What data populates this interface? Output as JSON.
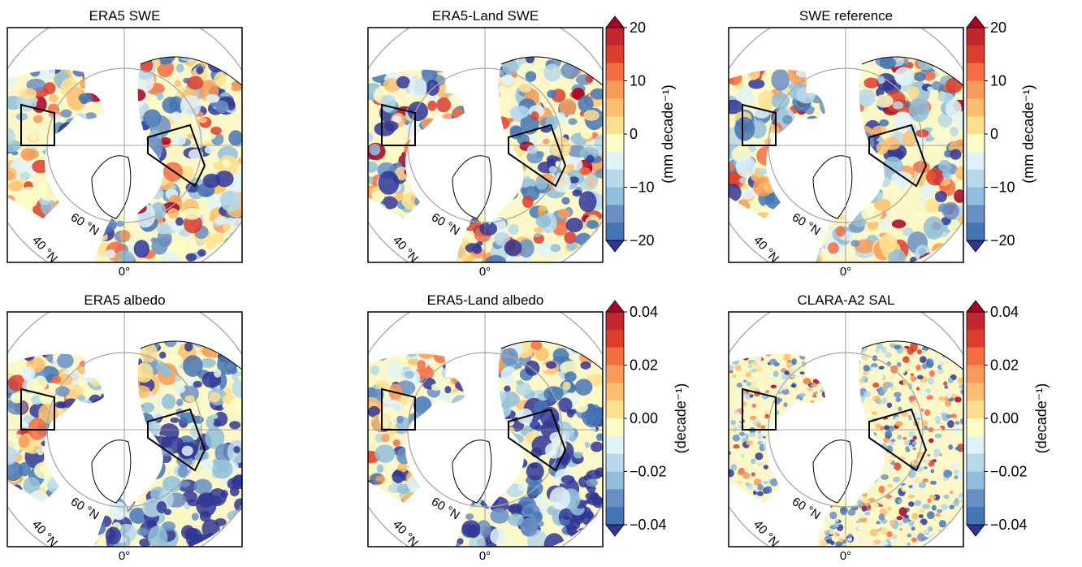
{
  "figure": {
    "panels": [
      {
        "title": "ERA5 SWE",
        "colorbar": "swe"
      },
      {
        "title": "ERA5-Land SWE",
        "colorbar": "swe"
      },
      {
        "title": "SWE reference",
        "colorbar": "swe"
      },
      {
        "title": "ERA5 albedo",
        "colorbar": "albedo"
      },
      {
        "title": "ERA5-Land albedo",
        "colorbar": "albedo"
      },
      {
        "title": "CLARA-A2 SAL",
        "colorbar": "albedo"
      }
    ],
    "map_labels": {
      "lat_60": "60 °N",
      "lat_40": "40 °N",
      "lon_0": "0°"
    },
    "colorbars": {
      "swe": {
        "label": "(mm decade⁻¹)",
        "ticks": [
          "20",
          "10",
          "0",
          "−10",
          "−20"
        ],
        "range": [
          -20,
          20
        ]
      },
      "albedo": {
        "label": "(decade⁻¹)",
        "ticks": [
          "0.04",
          "0.02",
          "0.00",
          "−0.02",
          "−0.04"
        ],
        "range": [
          -0.04,
          0.04
        ]
      }
    },
    "palette": [
      "#313695",
      "#4575b4",
      "#6a8fc4",
      "#91bfdb",
      "#b7d9ea",
      "#e0f3f8",
      "#fdfdc6",
      "#fee090",
      "#fdbf6f",
      "#f99a58",
      "#f46d43",
      "#dd3d2d",
      "#c1272d",
      "#a50026"
    ],
    "land_color": "#fbf7c8"
  }
}
